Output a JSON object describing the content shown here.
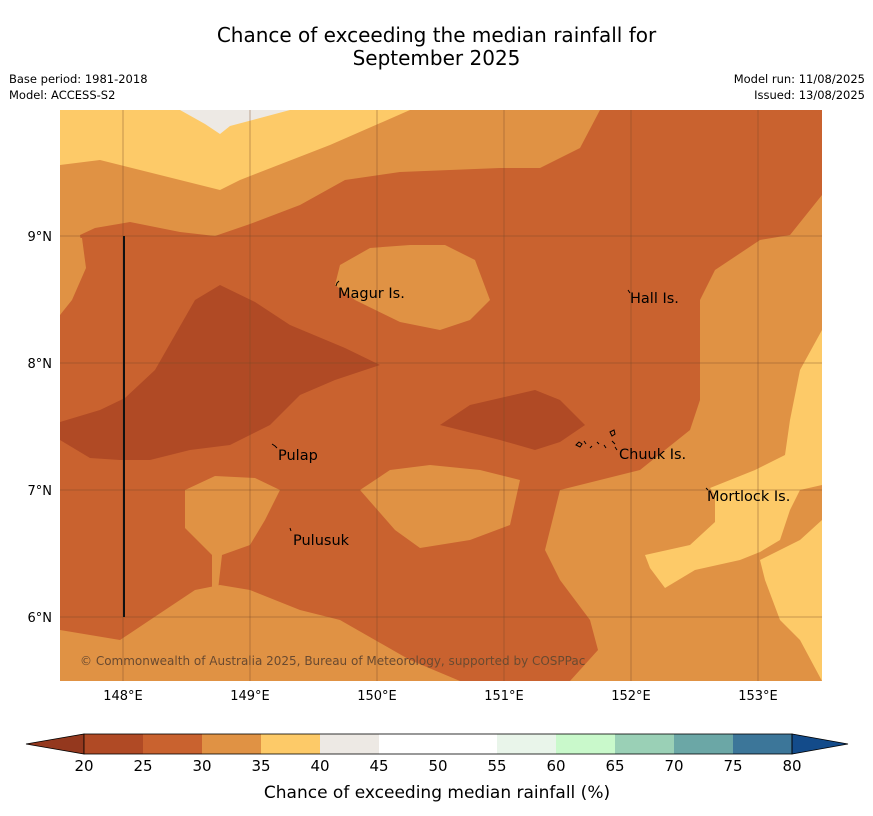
{
  "title": {
    "line1": "Chance of exceeding the median rainfall for",
    "line2": "September 2025"
  },
  "meta": {
    "base_period": "Base period: 1981-2018",
    "model": "Model: ACCESS-S2",
    "model_run": "Model run: 11/08/2025",
    "issued": "Issued: 13/08/2025"
  },
  "map": {
    "lon_ticks": [
      "148°E",
      "149°E",
      "150°E",
      "151°E",
      "152°E",
      "153°E"
    ],
    "lat_ticks": [
      "9°N",
      "8°N",
      "7°N",
      "6°N"
    ],
    "places": [
      {
        "name": "Magur Is."
      },
      {
        "name": "Hall Is."
      },
      {
        "name": "Pulap"
      },
      {
        "name": "Chuuk Is."
      },
      {
        "name": "Mortlock Is."
      },
      {
        "name": "Pulusuk"
      }
    ],
    "copyright": "© Commonwealth of Australia 2025, Bureau of Meteorology, supported by COSPPac",
    "colors": {
      "c20_25": "#b04a25",
      "c25_30": "#c9622f",
      "c30_35": "#e09244",
      "c35_40": "#fdca68",
      "c40_45": "#ede9e4"
    }
  },
  "colorbar": {
    "title": "Chance of exceeding median rainfall (%)",
    "ticks": [
      "20",
      "25",
      "30",
      "35",
      "40",
      "45",
      "50",
      "55",
      "60",
      "65",
      "70",
      "75",
      "80"
    ],
    "colors": [
      "#b04a25",
      "#c9622f",
      "#e09244",
      "#fdca68",
      "#ede9e4",
      "#ffffff",
      "#ffffff",
      "#e9f5ea",
      "#c9f9cb",
      "#9ad0b6",
      "#6ba7a6",
      "#3c7699"
    ],
    "under_color": "#94381e",
    "over_color": "#134b8a"
  }
}
